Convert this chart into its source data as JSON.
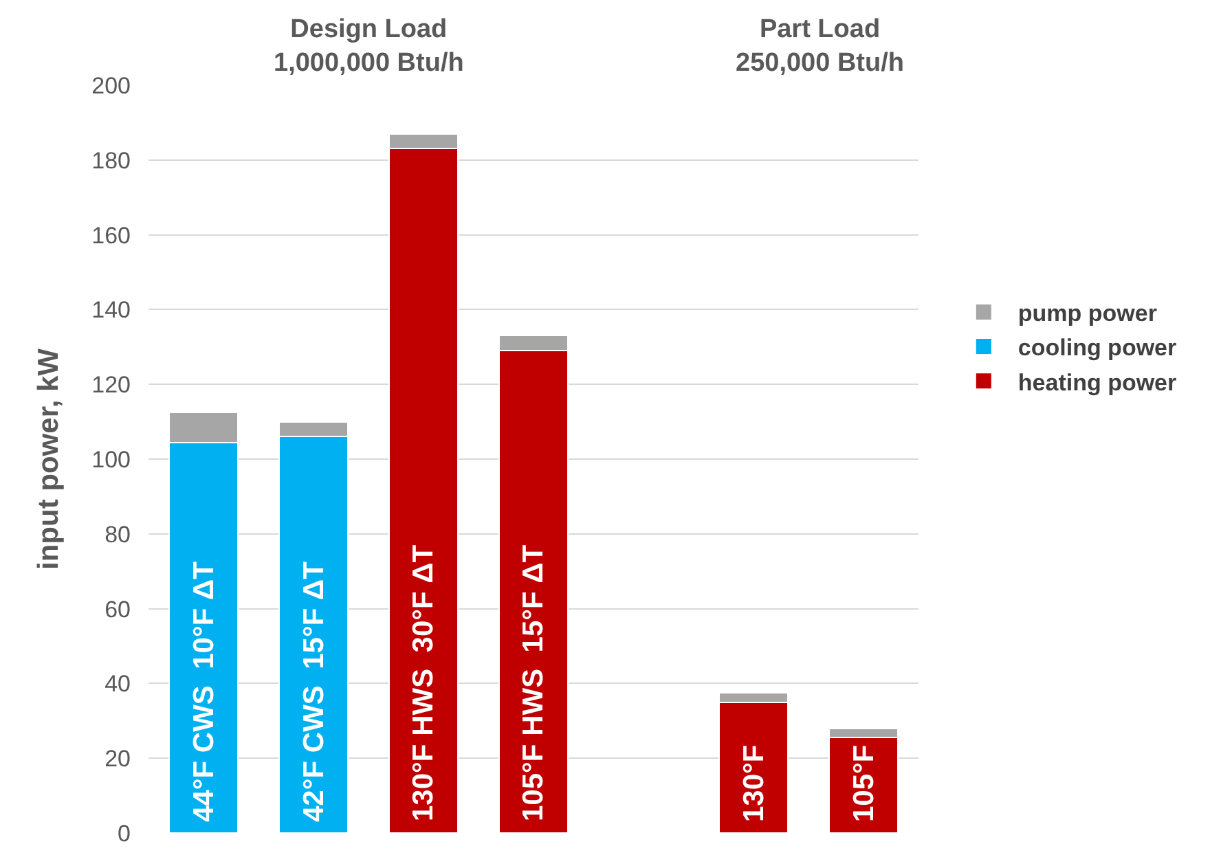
{
  "chart_data": {
    "type": "bar",
    "stacked": true,
    "ylabel": "input power, kW",
    "annotations": [
      "Design Load\n1,000,000 Btu/h",
      "Part Load\n250,000 Btu/h"
    ],
    "categories": [
      "44°F CWS  10°F ΔT",
      "42°F CWS  15°F ΔT",
      "130°F HWS  30°F ΔT",
      "105°F HWS  15°F ΔT",
      null,
      "130°F",
      "105°F"
    ],
    "series": [
      {
        "name": "heating power",
        "color": "#c00000",
        "values": [
          null,
          null,
          183,
          129,
          null,
          35,
          25.5
        ]
      },
      {
        "name": "cooling power",
        "color": "#00b0f0",
        "values": [
          104.5,
          106,
          null,
          null,
          null,
          null,
          null
        ]
      },
      {
        "name": "pump power",
        "color": "#a6a6a6",
        "values": [
          8,
          4,
          4,
          4,
          null,
          2.5,
          2.5
        ]
      }
    ],
    "ylim": [
      0,
      200
    ],
    "yticks": [
      0,
      20,
      40,
      60,
      80,
      100,
      120,
      140,
      160,
      180,
      200
    ],
    "grid": "y",
    "legend": "right",
    "tick_labels": "y"
  }
}
